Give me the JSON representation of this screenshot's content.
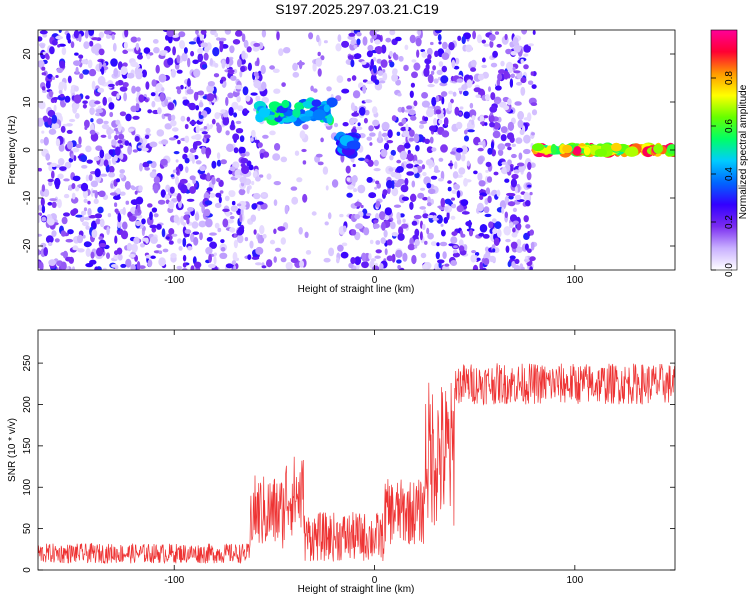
{
  "title": "S197.2025.297.03.21.C19",
  "chart_data": [
    {
      "type": "heatmap",
      "name": "spectrogram",
      "xlabel": "Height of straight line (km)",
      "ylabel": "Frequency (Hz)",
      "xlim": [
        -168,
        150
      ],
      "ylim": [
        -25,
        25
      ],
      "xticks": [
        -100,
        0,
        100
      ],
      "yticks": [
        -20,
        -10,
        0,
        10,
        20
      ],
      "colorbar": {
        "label": "Normalized spectral amplitude",
        "range": [
          0,
          1
        ],
        "ticks": [
          0.0,
          0.2,
          0.4,
          0.6,
          0.8
        ],
        "tick_labels": [
          "0.0",
          "0.2",
          "0.4",
          "0.6",
          "0.8"
        ],
        "colors": [
          "#ffffff",
          "#c9b0ff",
          "#7a2cf0",
          "#3300ff",
          "#0066ff",
          "#00ccff",
          "#00ff66",
          "#66ff00",
          "#ffff00",
          "#ff9900",
          "#ff0033",
          "#ff0099"
        ]
      },
      "features": [
        {
          "label": "noise background",
          "x_range": [
            -168,
            80
          ],
          "freq_range": [
            -25,
            25
          ],
          "amplitude": 0.15
        },
        {
          "label": "gap region",
          "x_range": [
            -55,
            -15
          ],
          "freq_range": [
            -25,
            25
          ],
          "amplitude": 0.05
        },
        {
          "label": "signal burst",
          "x_range": [
            -58,
            -20
          ],
          "freq": 8,
          "amplitude": 0.55
        },
        {
          "label": "signal burst",
          "x_range": [
            -17,
            -10
          ],
          "freq": 1,
          "amplitude": 0.45
        },
        {
          "label": "carrier line",
          "x_range": [
            80,
            150
          ],
          "freq": 0,
          "amplitude": 0.92
        }
      ]
    },
    {
      "type": "line",
      "name": "snr",
      "xlabel": "Height of straight line (km)",
      "ylabel": "SNR (10 * v/v)",
      "xlim": [
        -168,
        150
      ],
      "ylim": [
        0,
        290
      ],
      "xticks": [
        -100,
        0,
        100
      ],
      "yticks": [
        0,
        50,
        100,
        150,
        200,
        250
      ],
      "color": "#ee3333",
      "series": [
        {
          "name": "SNR",
          "segments": [
            {
              "x_range": [
                -168,
                -62
              ],
              "mean": 20,
              "spread": 12
            },
            {
              "x_range": [
                -62,
                -45
              ],
              "mean": 70,
              "spread": 45
            },
            {
              "x_range": [
                -45,
                -35
              ],
              "mean": 90,
              "spread": 50
            },
            {
              "x_range": [
                -35,
                5
              ],
              "mean": 40,
              "spread": 30
            },
            {
              "x_range": [
                5,
                25
              ],
              "mean": 70,
              "spread": 40
            },
            {
              "x_range": [
                25,
                40
              ],
              "mean": 140,
              "spread": 90
            },
            {
              "x_range": [
                40,
                150
              ],
              "mean": 225,
              "spread": 25
            }
          ]
        }
      ]
    }
  ]
}
